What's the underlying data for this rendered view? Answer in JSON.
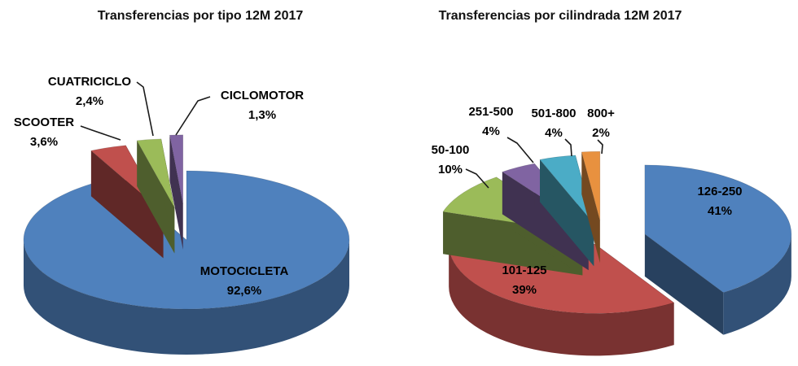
{
  "page": {
    "background": "#ffffff"
  },
  "chart_data": [
    {
      "type": "pie",
      "style": "3d-exploded-pie",
      "title": "Transferencias por tipo 12M 2017",
      "unit": "%",
      "legend": "none",
      "labels_position": "outside-with-leader-lines",
      "slices": [
        {
          "label": "MOTOCICLETA",
          "value": 92.6,
          "pct_label": "92,6%",
          "color": "#4f81bd",
          "explode": 0
        },
        {
          "label": "SCOOTER",
          "value": 3.6,
          "pct_label": "3,6%",
          "color": "#c0504d",
          "explode": 0.42
        },
        {
          "label": "CUATRICICLO",
          "value": 2.4,
          "pct_label": "2,4%",
          "color": "#9bbb59",
          "explode": 0.47
        },
        {
          "label": "CICLOMOTOR",
          "value": 1.3,
          "pct_label": "1,3%",
          "color": "#8064a2",
          "explode": 0.52
        }
      ]
    },
    {
      "type": "pie",
      "style": "3d-exploded-pie",
      "title": "Transferencias por cilindrada 12M 2017",
      "unit": "%",
      "legend": "none",
      "labels_position": "outside-with-leader-lines",
      "slices": [
        {
          "label": "126-250",
          "value": 41,
          "pct_label": "41%",
          "color": "#4f81bd",
          "explode": 0.3
        },
        {
          "label": "101-125",
          "value": 39,
          "pct_label": "39%",
          "color": "#c0504d",
          "explode": 0.08
        },
        {
          "label": "50-100",
          "value": 10,
          "pct_label": "10%",
          "color": "#9bbb59",
          "explode": 0.17
        },
        {
          "label": "251-500",
          "value": 4,
          "pct_label": "4%",
          "color": "#8064a2",
          "explode": 0.2
        },
        {
          "label": "501-800",
          "value": 4,
          "pct_label": "4%",
          "color": "#4bacc6",
          "explode": 0.24
        },
        {
          "label": "800+",
          "value": 2,
          "pct_label": "2%",
          "color": "#e8913f",
          "explode": 0.28
        }
      ]
    }
  ]
}
